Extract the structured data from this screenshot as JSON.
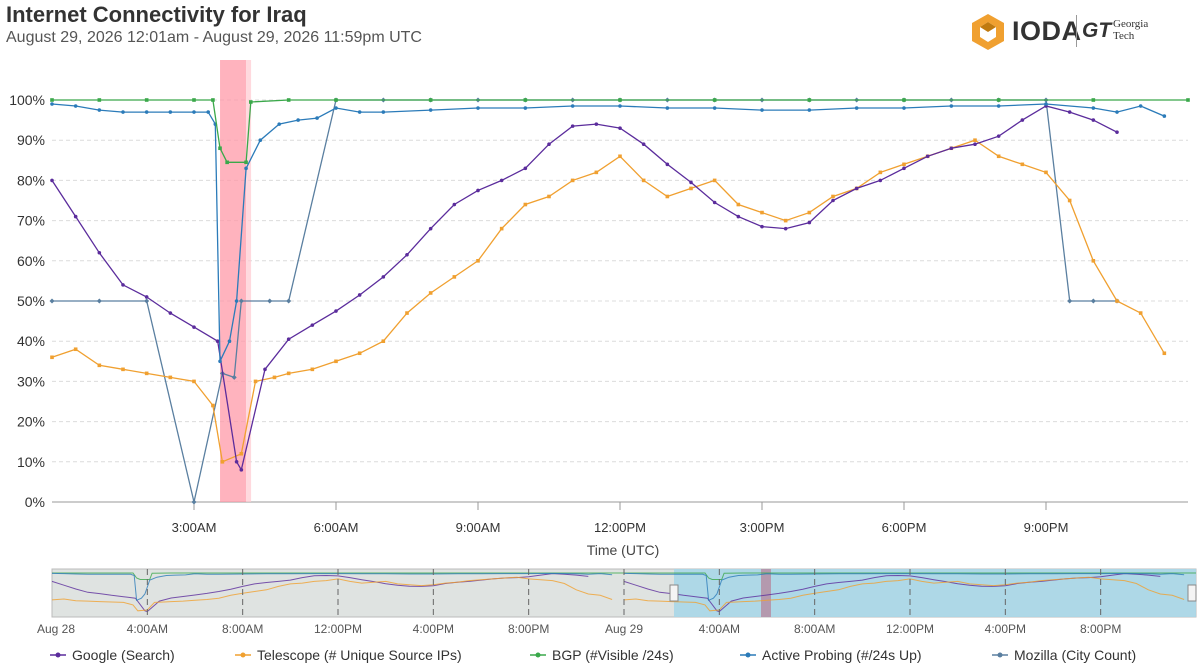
{
  "header": {
    "title": "Internet Connectivity for Iraq",
    "subtitle": "August 29, 2026 12:01am - August 29, 2026 11:59pm UTC"
  },
  "logo": {
    "ioda_text": "IODA",
    "gt_mark": "GT",
    "gt_line1": "Georgia",
    "gt_line2": "Tech"
  },
  "chart_data": {
    "type": "line",
    "title": "Internet Connectivity for Iraq",
    "xlabel": "Time (UTC)",
    "ylabel": "",
    "xlim": [
      0,
      24
    ],
    "ylim": [
      0,
      100
    ],
    "grid": true,
    "y_ticks": [
      "0%",
      "10%",
      "20%",
      "30%",
      "40%",
      "50%",
      "60%",
      "70%",
      "80%",
      "90%",
      "100%"
    ],
    "x_ticks": [
      {
        "x": 3,
        "label": "3:00AM"
      },
      {
        "x": 6,
        "label": "6:00AM"
      },
      {
        "x": 9,
        "label": "9:00AM"
      },
      {
        "x": 12,
        "label": "12:00PM"
      },
      {
        "x": 15,
        "label": "3:00PM"
      },
      {
        "x": 18,
        "label": "6:00PM"
      },
      {
        "x": 21,
        "label": "9:00PM"
      }
    ],
    "outage_band": [
      3.55,
      4.1
    ],
    "legend_position": "bottom",
    "series": [
      {
        "name": "Google (Search)",
        "color": "#5b2c9c",
        "marker": "circle",
        "x": [
          0,
          0.5,
          1,
          1.5,
          2,
          2.5,
          3,
          3.5,
          3.9,
          4,
          4.5,
          5,
          5.5,
          6,
          6.5,
          7,
          7.5,
          8,
          8.5,
          9,
          9.5,
          10,
          10.5,
          11,
          11.5,
          12,
          12.5,
          13,
          13.5,
          14,
          14.5,
          15,
          15.5,
          16,
          16.5,
          17,
          17.5,
          18,
          18.5,
          19,
          19.5,
          20,
          20.5,
          21,
          21.5,
          22,
          22.5
        ],
        "y": [
          80,
          71,
          62,
          54,
          51,
          47,
          43.5,
          40,
          10,
          8,
          33,
          40.5,
          44,
          47.5,
          51.5,
          56,
          61.5,
          68,
          74,
          77.5,
          80,
          83,
          89,
          93.5,
          94,
          93,
          89,
          84,
          79.5,
          74.5,
          71,
          68.5,
          68,
          69.5,
          75,
          78,
          80,
          83,
          86,
          88,
          89,
          91,
          95,
          98.5,
          97,
          95,
          92
        ]
      },
      {
        "name": "Telescope (# Unique Source IPs)",
        "color": "#f0a030",
        "marker": "square",
        "x": [
          0,
          0.5,
          1,
          1.5,
          2,
          2.5,
          3,
          3.4,
          3.6,
          4,
          4.3,
          4.7,
          5,
          5.5,
          6,
          6.5,
          7,
          7.5,
          8,
          8.5,
          9,
          9.5,
          10,
          10.5,
          11,
          11.5,
          12,
          12.5,
          13,
          13.5,
          14,
          14.5,
          15,
          15.5,
          16,
          16.5,
          17,
          17.5,
          18,
          18.5,
          19,
          19.5,
          20,
          20.5,
          21,
          21.5,
          22,
          22.5,
          23,
          23.5
        ],
        "y": [
          36,
          38,
          34,
          33,
          32,
          31,
          30,
          24,
          10,
          12,
          30,
          31,
          32,
          33,
          35,
          37,
          40,
          47,
          52,
          56,
          60,
          68,
          74,
          76,
          80,
          82,
          86,
          80,
          76,
          78,
          80,
          74,
          72,
          70,
          72,
          76,
          78,
          82,
          84,
          86,
          88,
          90,
          86,
          84,
          82,
          75,
          60,
          50,
          47,
          37
        ]
      },
      {
        "name": "BGP (#Visible /24s)",
        "color": "#3aa84a",
        "marker": "square",
        "x": [
          0,
          1,
          2,
          3,
          3.4,
          3.55,
          3.7,
          4.1,
          4.2,
          5,
          6,
          8,
          10,
          12,
          14,
          16,
          18,
          20,
          22,
          24
        ],
        "y": [
          100,
          100,
          100,
          100,
          100,
          88,
          84.5,
          84.5,
          99.5,
          100,
          100,
          100,
          100,
          100,
          100,
          100,
          100,
          100,
          100,
          100
        ]
      },
      {
        "name": "Active Probing (#/24s Up)",
        "color": "#2b7bb9",
        "marker": "circle",
        "x": [
          0,
          0.5,
          1,
          1.5,
          2,
          2.5,
          3,
          3.3,
          3.45,
          3.55,
          3.75,
          3.9,
          4.1,
          4.4,
          4.8,
          5.2,
          5.6,
          6,
          6.5,
          7,
          8,
          9,
          10,
          11,
          12,
          13,
          14,
          15,
          16,
          17,
          18,
          19,
          20,
          21,
          22,
          22.5,
          23,
          23.5
        ],
        "y": [
          99,
          98.5,
          97.5,
          97,
          97,
          97,
          97,
          97,
          94,
          35,
          40,
          50,
          83,
          90,
          94,
          95,
          95.5,
          98,
          97,
          97,
          97.5,
          98,
          98,
          98.5,
          98.5,
          98,
          98,
          97.5,
          97.5,
          98,
          98,
          98.5,
          98.5,
          99,
          98,
          97,
          98.5,
          96
        ]
      },
      {
        "name": "Mozilla (City Count)",
        "color": "#5a7fa0",
        "marker": "diamond",
        "x": [
          0,
          1,
          2,
          3,
          3.6,
          3.85,
          4,
          4.6,
          5,
          6,
          7,
          8,
          9,
          10,
          11,
          12,
          13,
          14,
          15,
          16,
          17,
          18,
          19,
          20,
          21,
          21.5,
          22,
          22.5
        ],
        "y": [
          50,
          50,
          50,
          0,
          32,
          31,
          50,
          50,
          50,
          100,
          100,
          100,
          100,
          100,
          100,
          100,
          100,
          100,
          100,
          100,
          100,
          100,
          100,
          100,
          100,
          50,
          50,
          50
        ]
      }
    ],
    "navigator": {
      "x_ticks": [
        "Aug 28",
        "4:00AM",
        "8:00AM",
        "12:00PM",
        "4:00PM",
        "8:00PM",
        "Aug 29",
        "4:00AM",
        "8:00AM",
        "12:00PM",
        "4:00PM",
        "8:00PM"
      ],
      "selected_range": "Aug 29"
    }
  },
  "legend": [
    {
      "label": "Google (Search)",
      "color": "#5b2c9c"
    },
    {
      "label": "Telescope (# Unique Source IPs)",
      "color": "#f0a030"
    },
    {
      "label": "BGP (#Visible /24s)",
      "color": "#3aa84a"
    },
    {
      "label": "Active Probing (#/24s Up)",
      "color": "#2b7bb9"
    },
    {
      "label": "Mozilla (City Count)",
      "color": "#5a7fa0"
    }
  ]
}
